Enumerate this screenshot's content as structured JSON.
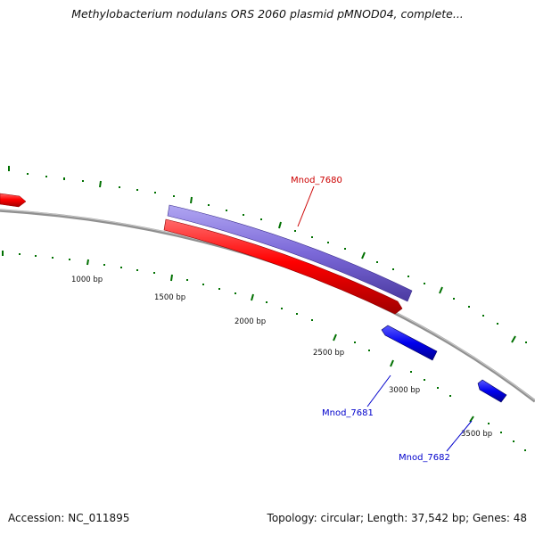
{
  "title": "Methylobacterium nodulans ORS 2060 plasmid pMNOD04, complete...",
  "footer": {
    "accession": "Accession: NC_011895",
    "topology": "Topology: circular; Length: 37,542 bp; Genes: 48"
  },
  "colors": {
    "backbone": "#808080",
    "tick": "#007000",
    "forward_gene": "#ff0000",
    "reverse_gene": "#0000ff",
    "cds_feature": "#7b68d8",
    "label_forward": "#cc0000",
    "label_reverse": "#0000cc"
  },
  "scale_labels": [
    "1000 bp",
    "1500 bp",
    "2000 bp",
    "2500 bp",
    "3000 bp",
    "3500 bp"
  ],
  "genes": [
    {
      "label": "Mnod_7680",
      "strand": "forward",
      "color": "#cc0000"
    },
    {
      "label": "Mnod_7681",
      "strand": "reverse",
      "color": "#0000cc"
    },
    {
      "label": "Mnod_7682",
      "strand": "reverse",
      "color": "#0000cc"
    }
  ]
}
